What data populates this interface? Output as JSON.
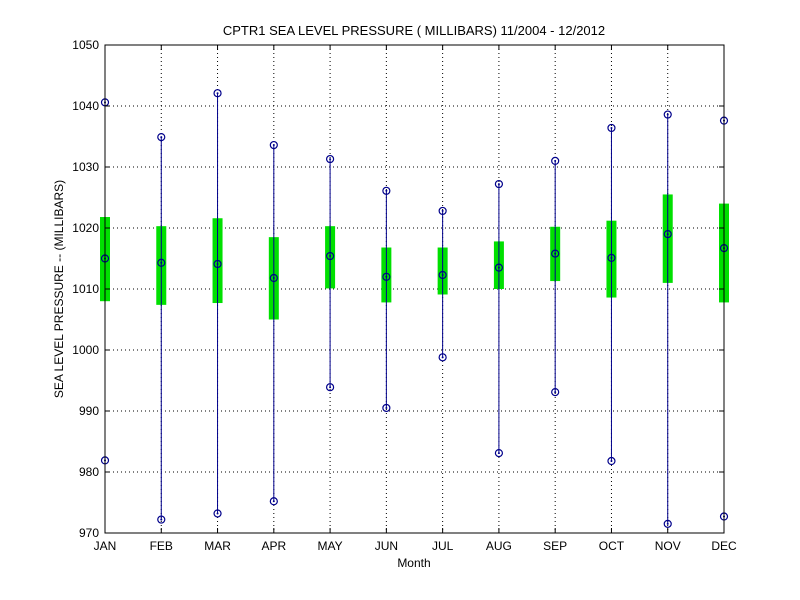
{
  "chart_data": {
    "type": "box",
    "title": "CPTR1  SEA LEVEL PRESSURE ( MILLIBARS) 11/2004 - 12/2012",
    "xlabel": "Month",
    "ylabel": "SEA LEVEL PRESSURE -- (MILLIBARS)",
    "ylim": [
      970,
      1050
    ],
    "yticks": [
      970,
      980,
      990,
      1000,
      1010,
      1020,
      1030,
      1040,
      1050
    ],
    "grid": true,
    "categories": [
      "JAN",
      "FEB",
      "MAR",
      "APR",
      "MAY",
      "JUN",
      "JUL",
      "AUG",
      "SEP",
      "OCT",
      "NOV",
      "DEC"
    ],
    "series": [
      {
        "min": [
          981.9,
          972.2,
          973.2,
          975.2,
          993.9,
          990.5,
          998.8,
          983.1,
          993.1,
          981.8,
          971.5,
          972.7
        ]
      },
      {
        "q1": [
          1008.0,
          1007.4,
          1007.7,
          1005.0,
          1010.1,
          1007.8,
          1009.1,
          1010.0,
          1011.3,
          1008.6,
          1011.0,
          1007.8
        ]
      },
      {
        "mean": [
          1015.0,
          1014.3,
          1014.1,
          1011.8,
          1015.4,
          1012.0,
          1012.3,
          1013.5,
          1015.8,
          1015.1,
          1019.0,
          1016.7
        ]
      },
      {
        "q3": [
          1021.8,
          1020.3,
          1021.6,
          1018.5,
          1020.3,
          1016.8,
          1016.8,
          1017.8,
          1020.2,
          1021.2,
          1025.5,
          1024.0
        ]
      },
      {
        "max": [
          1040.6,
          1034.9,
          1042.1,
          1033.6,
          1031.3,
          1026.1,
          1022.8,
          1027.2,
          1031.0,
          1036.4,
          1038.6,
          1037.6
        ]
      }
    ],
    "colors": {
      "whisker": "#00008b",
      "box": "#00e000",
      "marker": "#00008b",
      "grid": "#000000"
    }
  }
}
